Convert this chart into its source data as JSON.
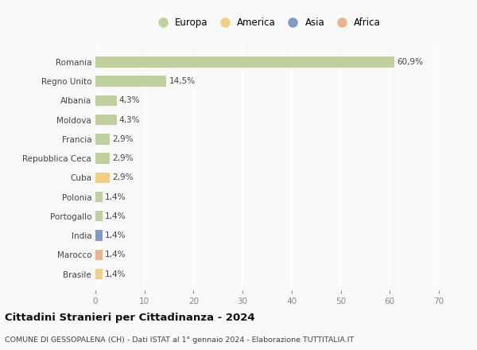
{
  "categories": [
    "Romania",
    "Regno Unito",
    "Albania",
    "Moldova",
    "Francia",
    "Repubblica Ceca",
    "Cuba",
    "Polonia",
    "Portogallo",
    "India",
    "Marocco",
    "Brasile"
  ],
  "values": [
    60.9,
    14.5,
    4.3,
    4.3,
    2.9,
    2.9,
    2.9,
    1.4,
    1.4,
    1.4,
    1.4,
    1.4
  ],
  "labels": [
    "60,9%",
    "14,5%",
    "4,3%",
    "4,3%",
    "2,9%",
    "2,9%",
    "2,9%",
    "1,4%",
    "1,4%",
    "1,4%",
    "1,4%",
    "1,4%"
  ],
  "bar_colors": [
    "#b5c98e",
    "#b5c98e",
    "#b5c98e",
    "#b5c98e",
    "#b5c98e",
    "#b5c98e",
    "#f0c96e",
    "#b5c98e",
    "#b5c98e",
    "#6b8cba",
    "#e8a87c",
    "#f0c96e"
  ],
  "legend_labels": [
    "Europa",
    "America",
    "Asia",
    "Africa"
  ],
  "legend_colors": [
    "#b5c98e",
    "#f0c96e",
    "#6b8cba",
    "#e8a87c"
  ],
  "xlim": [
    0,
    70
  ],
  "xticks": [
    0,
    10,
    20,
    30,
    40,
    50,
    60,
    70
  ],
  "title": "Cittadini Stranieri per Cittadinanza - 2024",
  "subtitle": "COMUNE DI GESSOPALENA (CH) - Dati ISTAT al 1° gennaio 2024 - Elaborazione TUTTITALIA.IT",
  "bg_color": "#f9f9f9",
  "grid_color": "#ffffff",
  "bar_height": 0.55
}
